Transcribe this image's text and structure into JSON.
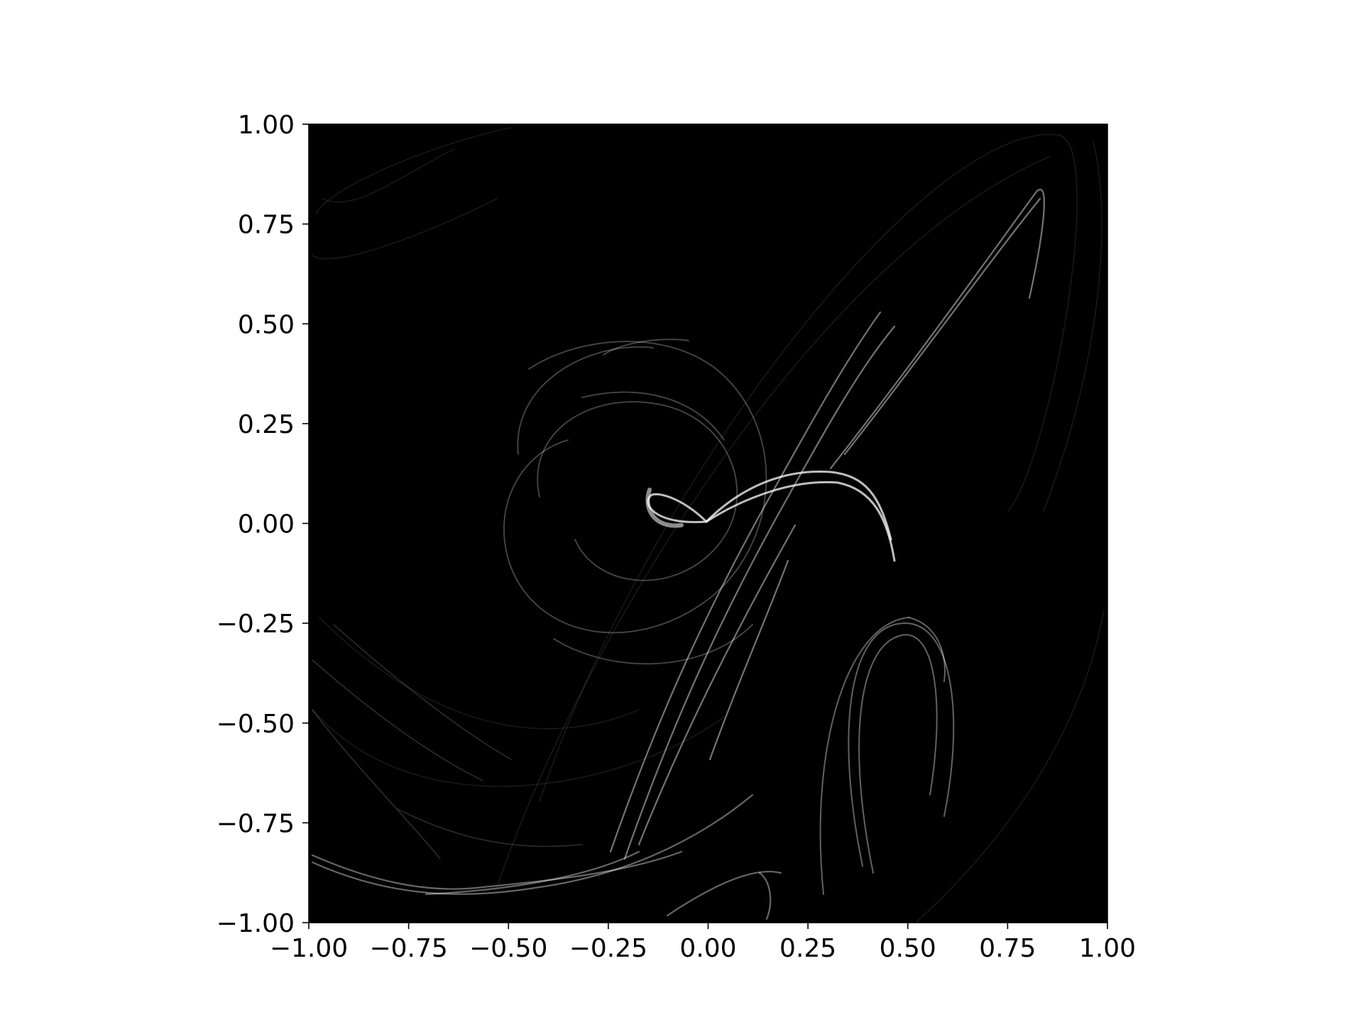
{
  "chart_data": {
    "type": "heatmap",
    "title": "",
    "xlabel": "",
    "ylabel": "",
    "xlim": [
      -1.0,
      1.0
    ],
    "ylim": [
      -1.0,
      1.0
    ],
    "aspect": "equal",
    "grid": false,
    "colormap": "gray",
    "background_color": "#000000",
    "x_ticks": [
      -1.0,
      -0.75,
      -0.5,
      -0.25,
      0.0,
      0.25,
      0.5,
      0.75,
      1.0
    ],
    "y_ticks": [
      -1.0,
      -0.75,
      -0.5,
      -0.25,
      0.0,
      0.25,
      0.5,
      0.75,
      1.0
    ],
    "x_tick_labels": [
      "−1.00",
      "−0.75",
      "−0.50",
      "−0.25",
      "0.00",
      "0.25",
      "0.50",
      "0.75",
      "1.00"
    ],
    "y_tick_labels": [
      "−1.00",
      "−0.75",
      "−0.50",
      "−0.25",
      "0.00",
      "0.25",
      "0.50",
      "0.75",
      "1.00"
    ],
    "description_of_density": "strange-attractor point density: spiral around origin, loops toward upper right and lower region"
  }
}
